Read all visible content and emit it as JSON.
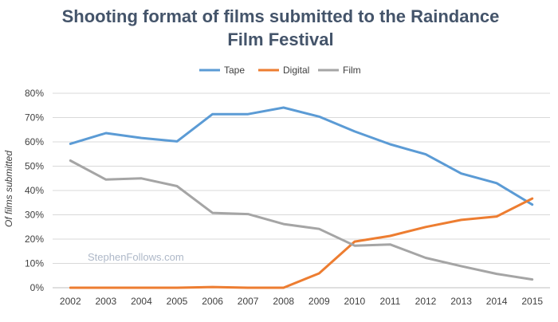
{
  "chart_data": {
    "type": "line",
    "title_lines": [
      "Shooting format of films submitted to the Raindance",
      "Film Festival"
    ],
    "xlabel": "",
    "ylabel": "Of films submitted",
    "x": [
      "2002",
      "2003",
      "2004",
      "2005",
      "2006",
      "2007",
      "2008",
      "2009",
      "2010",
      "2011",
      "2012",
      "2013",
      "2014",
      "2015"
    ],
    "ylim": [
      0,
      80
    ],
    "yticks": [
      0,
      10,
      20,
      30,
      40,
      50,
      60,
      70,
      80
    ],
    "ytick_suffix": "%",
    "grid": true,
    "legend_position": "top-center",
    "watermark": "StephenFollows.com",
    "series": [
      {
        "name": "Tape",
        "color": "#5b9bd5",
        "values": [
          59.2,
          63.6,
          61.6,
          60.2,
          71.4,
          71.4,
          74.1,
          70.4,
          64.3,
          59.0,
          54.9,
          47.0,
          43.0,
          34.2
        ]
      },
      {
        "name": "Digital",
        "color": "#ed7d31",
        "values": [
          0.0,
          0.0,
          0.0,
          0.0,
          0.3,
          0.0,
          0.0,
          5.9,
          19.0,
          21.3,
          25.0,
          27.9,
          29.3,
          36.7
        ]
      },
      {
        "name": "Film",
        "color": "#a5a5a5",
        "values": [
          52.3,
          44.5,
          45.0,
          41.8,
          30.8,
          30.3,
          26.2,
          24.2,
          17.3,
          17.8,
          12.3,
          8.9,
          5.7,
          3.4
        ]
      }
    ]
  }
}
